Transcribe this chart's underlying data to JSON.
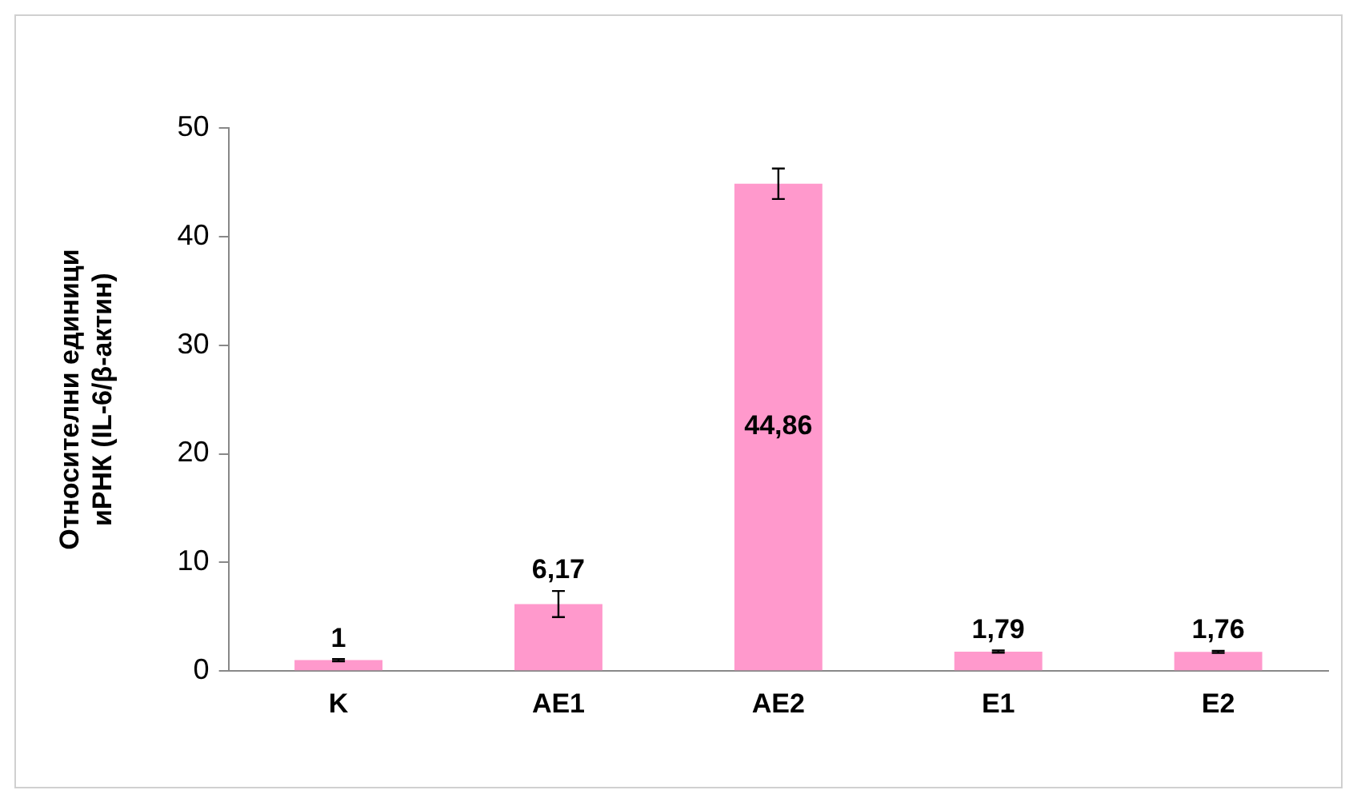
{
  "chart_data": {
    "type": "bar",
    "ylabel": "Относителни единици иРНК (IL-6/β-актин)",
    "categories": [
      "K",
      "AE1",
      "AE2",
      "E1",
      "E2"
    ],
    "values": [
      1,
      6.17,
      44.86,
      1.79,
      1.76
    ],
    "value_labels": [
      "1",
      "6,17",
      "44,86",
      "1,79",
      "1,76"
    ],
    "errors": [
      0.1,
      1.2,
      1.4,
      0.1,
      0.1
    ],
    "color": "#ff99cc",
    "ylim": [
      0,
      50
    ],
    "yticks": [
      0,
      10,
      20,
      30,
      40,
      50
    ],
    "grid": false,
    "legend": false
  }
}
